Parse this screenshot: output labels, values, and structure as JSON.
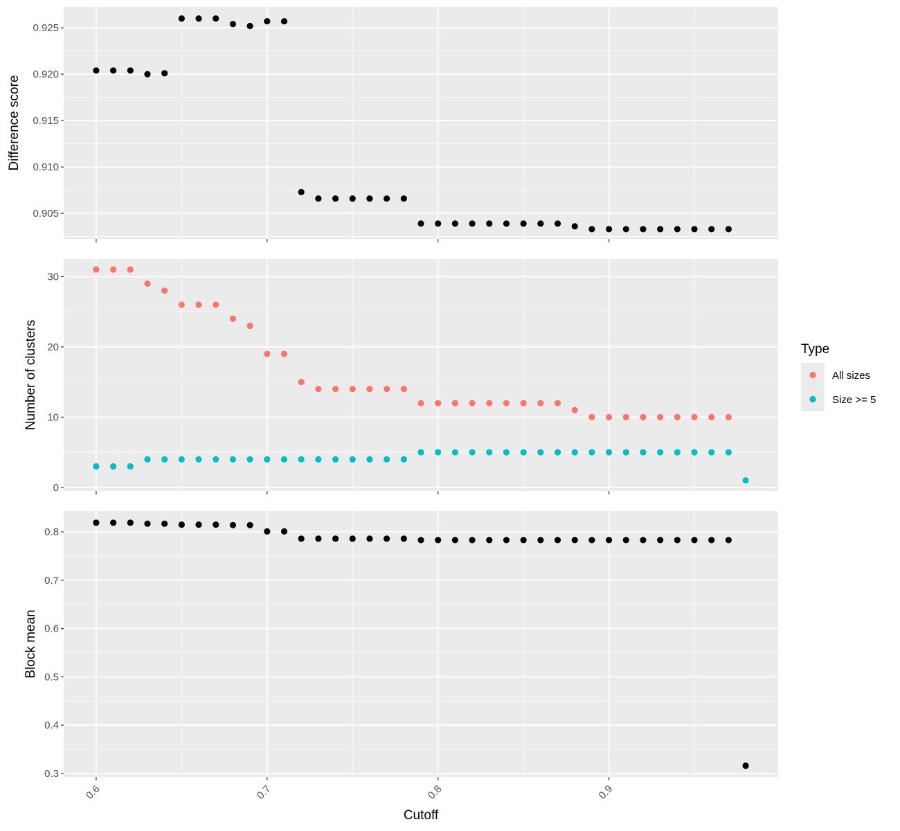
{
  "chart_data": {
    "type": "scatter",
    "x_label": "Cutoff",
    "x_range": [
      0.581,
      0.999
    ],
    "x_ticks": [
      0.6,
      0.7,
      0.8,
      0.9
    ],
    "x_tick_labels": [
      "0.6",
      "0.7",
      "0.8",
      "0.9"
    ],
    "x_tick_label_rotation": -45,
    "grid": true,
    "legend": {
      "title": "Type",
      "position": "right",
      "entries": [
        {
          "label": "All sizes",
          "color": "#F8766D"
        },
        {
          "label": "Size >= 5",
          "color": "#00BFC4"
        }
      ]
    },
    "panels": [
      {
        "id": "difference",
        "ylabel": "Difference score",
        "ylim": [
          0.90225,
          0.92725
        ],
        "y_ticks": [
          0.905,
          0.91,
          0.915,
          0.92,
          0.925
        ],
        "y_tick_labels": [
          "0.905",
          "0.910",
          "0.915",
          "0.920",
          "0.925"
        ],
        "series": [
          {
            "color": "#000000",
            "x": [
              0.6,
              0.61,
              0.62,
              0.63,
              0.64,
              0.65,
              0.66,
              0.67,
              0.68,
              0.69,
              0.7,
              0.71,
              0.72,
              0.73,
              0.74,
              0.75,
              0.76,
              0.77,
              0.78,
              0.79,
              0.8,
              0.81,
              0.82,
              0.83,
              0.84,
              0.85,
              0.86,
              0.87,
              0.88,
              0.89,
              0.9,
              0.91,
              0.92,
              0.93,
              0.94,
              0.95,
              0.96,
              0.97
            ],
            "y": [
              0.9204,
              0.9204,
              0.9204,
              0.92,
              0.9201,
              0.926,
              0.926,
              0.926,
              0.9254,
              0.9252,
              0.9257,
              0.9257,
              0.9073,
              0.9066,
              0.9066,
              0.9066,
              0.9066,
              0.9066,
              0.9066,
              0.9039,
              0.9039,
              0.9039,
              0.9039,
              0.9039,
              0.9039,
              0.9039,
              0.9039,
              0.9039,
              0.9036,
              0.9033,
              0.9033,
              0.9033,
              0.9033,
              0.9033,
              0.9033,
              0.9033,
              0.9033,
              0.9033
            ]
          }
        ]
      },
      {
        "id": "clusters",
        "ylabel": "Number of clusters",
        "ylim": [
          -0.5,
          32.5
        ],
        "y_ticks": [
          0,
          10,
          20,
          30
        ],
        "y_tick_labels": [
          "0",
          "10",
          "20",
          "30"
        ],
        "series": [
          {
            "name": "All sizes",
            "color": "#F8766D",
            "x": [
              0.6,
              0.61,
              0.62,
              0.63,
              0.64,
              0.65,
              0.66,
              0.67,
              0.68,
              0.69,
              0.7,
              0.71,
              0.72,
              0.73,
              0.74,
              0.75,
              0.76,
              0.77,
              0.78,
              0.79,
              0.8,
              0.81,
              0.82,
              0.83,
              0.84,
              0.85,
              0.86,
              0.87,
              0.88,
              0.89,
              0.9,
              0.91,
              0.92,
              0.93,
              0.94,
              0.95,
              0.96,
              0.97
            ],
            "y": [
              31,
              31,
              31,
              29,
              28,
              26,
              26,
              26,
              24,
              23,
              19,
              19,
              15,
              14,
              14,
              14,
              14,
              14,
              14,
              12,
              12,
              12,
              12,
              12,
              12,
              12,
              12,
              12,
              11,
              10,
              10,
              10,
              10,
              10,
              10,
              10,
              10,
              10
            ]
          },
          {
            "name": "Size >= 5",
            "color": "#00BFC4",
            "x": [
              0.6,
              0.61,
              0.62,
              0.63,
              0.64,
              0.65,
              0.66,
              0.67,
              0.68,
              0.69,
              0.7,
              0.71,
              0.72,
              0.73,
              0.74,
              0.75,
              0.76,
              0.77,
              0.78,
              0.79,
              0.8,
              0.81,
              0.82,
              0.83,
              0.84,
              0.85,
              0.86,
              0.87,
              0.88,
              0.89,
              0.9,
              0.91,
              0.92,
              0.93,
              0.94,
              0.95,
              0.96,
              0.97,
              0.98
            ],
            "y": [
              3,
              3,
              3,
              4,
              4,
              4,
              4,
              4,
              4,
              4,
              4,
              4,
              4,
              4,
              4,
              4,
              4,
              4,
              4,
              5,
              5,
              5,
              5,
              5,
              5,
              5,
              5,
              5,
              5,
              5,
              5,
              5,
              5,
              5,
              5,
              5,
              5,
              5,
              1
            ]
          }
        ]
      },
      {
        "id": "block",
        "ylabel": "Block mean",
        "ylim": [
          0.2927,
          0.8431
        ],
        "y_ticks": [
          0.3,
          0.4,
          0.5,
          0.6,
          0.7,
          0.8
        ],
        "y_tick_labels": [
          "0.3",
          "0.4",
          "0.5",
          "0.6",
          "0.7",
          "0.8"
        ],
        "series": [
          {
            "color": "#000000",
            "x": [
              0.6,
              0.61,
              0.62,
              0.63,
              0.64,
              0.65,
              0.66,
              0.67,
              0.68,
              0.69,
              0.7,
              0.71,
              0.72,
              0.73,
              0.74,
              0.75,
              0.76,
              0.77,
              0.78,
              0.79,
              0.8,
              0.81,
              0.82,
              0.83,
              0.84,
              0.85,
              0.86,
              0.87,
              0.88,
              0.89,
              0.9,
              0.91,
              0.92,
              0.93,
              0.94,
              0.95,
              0.96,
              0.97,
              0.98
            ],
            "y": [
              0.819,
              0.819,
              0.819,
              0.817,
              0.817,
              0.815,
              0.815,
              0.815,
              0.814,
              0.814,
              0.801,
              0.801,
              0.786,
              0.786,
              0.786,
              0.786,
              0.786,
              0.786,
              0.786,
              0.783,
              0.783,
              0.783,
              0.783,
              0.783,
              0.783,
              0.783,
              0.783,
              0.783,
              0.783,
              0.783,
              0.783,
              0.783,
              0.783,
              0.783,
              0.783,
              0.783,
              0.783,
              0.783,
              0.316
            ]
          }
        ]
      }
    ]
  }
}
